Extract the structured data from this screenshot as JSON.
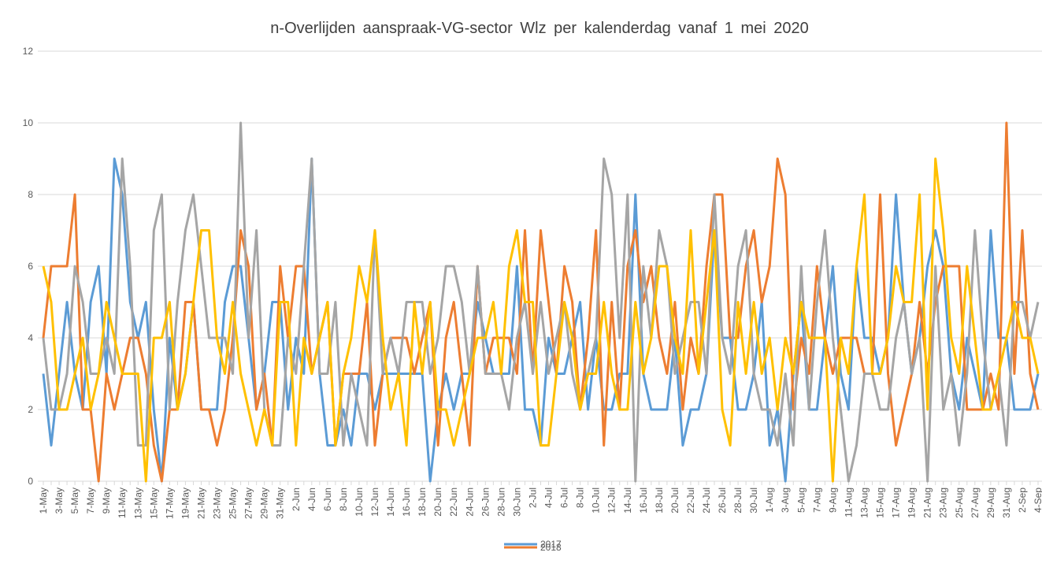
{
  "chart_data": {
    "type": "line",
    "title": "n-Overlijden  aanspraak-VG-sector  Wlz  per  kalenderdag  vanaf  1  mei  2020",
    "categories": [
      "1-May",
      null,
      "3-May",
      null,
      "5-May",
      null,
      "7-May",
      null,
      "9-May",
      null,
      "11-May",
      null,
      "13-May",
      null,
      "15-May",
      null,
      "17-May",
      null,
      "19-May",
      null,
      "21-May",
      null,
      "23-May",
      null,
      "25-May",
      null,
      "27-May",
      null,
      "29-May",
      null,
      "31-May",
      null,
      "2-Jun",
      null,
      "4-Jun",
      null,
      "6-Jun",
      null,
      "8-Jun",
      null,
      "10-Jun",
      null,
      "12-Jun",
      null,
      "14-Jun",
      null,
      "16-Jun",
      null,
      "18-Jun",
      null,
      "20-Jun",
      null,
      "22-Jun",
      null,
      "24-Jun",
      null,
      "26-Jun",
      null,
      "28-Jun",
      null,
      "30-Jun",
      null,
      "2-Jul",
      null,
      "4-Jul",
      null,
      "6-Jul",
      null,
      "8-Jul",
      null,
      "10-Jul",
      null,
      "12-Jul",
      null,
      "14-Jul",
      null,
      "16-Jul",
      null,
      "18-Jul",
      null,
      "20-Jul",
      null,
      "22-Jul",
      null,
      "24-Jul",
      null,
      "26-Jul",
      null,
      "28-Jul",
      null,
      "30-Jul",
      null,
      "1-Aug",
      null,
      "3-Aug",
      null,
      "5-Aug",
      null,
      "7-Aug",
      null,
      "9-Aug",
      null,
      "11-Aug",
      null,
      "13-Aug",
      null,
      "15-Aug",
      null,
      "17-Aug",
      null,
      "19-Aug",
      null,
      "21-Aug",
      null,
      "23-Aug",
      null,
      "25-Aug",
      null,
      "27-Aug",
      null,
      "29-Aug",
      null,
      "31-Aug",
      null,
      "2-Sep",
      null,
      "4-Sep"
    ],
    "series": [
      {
        "name": "2017",
        "color": "#5b9bd5",
        "values": [
          3,
          1,
          3,
          5,
          3,
          2,
          5,
          6,
          3,
          9,
          8,
          5,
          4,
          5,
          2,
          0,
          4,
          2,
          3,
          5,
          2,
          2,
          2,
          5,
          6,
          6,
          4,
          2,
          3,
          5,
          5,
          2,
          4,
          3,
          9,
          3,
          1,
          1,
          2,
          1,
          3,
          3,
          2,
          3,
          3,
          3,
          3,
          3,
          3,
          0,
          2,
          3,
          2,
          3,
          3,
          5,
          4,
          3,
          3,
          3,
          6,
          2,
          2,
          1,
          4,
          3,
          3,
          4,
          5,
          2,
          4,
          2,
          2,
          3,
          3,
          8,
          3,
          2,
          2,
          2,
          4,
          1,
          2,
          2,
          3,
          7,
          4,
          4,
          2,
          2,
          3,
          5,
          1,
          2,
          0,
          3,
          5,
          2,
          2,
          4,
          6,
          3,
          2,
          6,
          4,
          4,
          3,
          4,
          8,
          5,
          3,
          4,
          6,
          7,
          6,
          3,
          2,
          4,
          3,
          2,
          7,
          4,
          4,
          2,
          2,
          2,
          3
        ]
      },
      {
        "name": "2018",
        "color": "#ed7d31",
        "values": [
          4,
          6,
          6,
          6,
          8,
          2,
          2,
          0,
          3,
          2,
          3,
          4,
          4,
          3,
          1,
          0,
          2,
          2,
          5,
          5,
          2,
          2,
          1,
          2,
          4,
          7,
          6,
          2,
          3,
          1,
          6,
          4,
          6,
          6,
          3,
          4,
          5,
          1,
          3,
          3,
          3,
          5,
          1,
          3,
          4,
          4,
          4,
          3,
          4,
          5,
          1,
          4,
          5,
          3,
          1,
          6,
          3,
          4,
          4,
          4,
          3,
          7,
          3,
          7,
          5,
          3,
          6,
          5,
          2,
          4,
          7,
          1,
          5,
          2,
          6,
          7,
          5,
          6,
          4,
          3,
          5,
          2,
          4,
          3,
          6,
          8,
          8,
          4,
          4,
          6,
          7,
          5,
          6,
          9,
          8,
          2,
          4,
          3,
          6,
          4,
          3,
          4,
          4,
          4,
          3,
          3,
          8,
          3,
          1,
          2,
          3,
          5,
          3,
          5,
          6,
          6,
          6,
          2,
          2,
          2,
          3,
          2,
          10,
          3,
          7,
          3,
          2
        ]
      },
      {
        "color": "#a5a5a5",
        "values": [
          4,
          2,
          2,
          3,
          6,
          5,
          3,
          3,
          4,
          3,
          9,
          6,
          1,
          1,
          7,
          8,
          2,
          5,
          7,
          8,
          6,
          4,
          4,
          4,
          3,
          10,
          4,
          7,
          2,
          1,
          1,
          4,
          3,
          6,
          9,
          3,
          3,
          5,
          1,
          3,
          2,
          1,
          7,
          3,
          4,
          3,
          5,
          5,
          5,
          3,
          4,
          6,
          6,
          5,
          3,
          6,
          3,
          3,
          3,
          2,
          4,
          5,
          3,
          5,
          3,
          4,
          5,
          3,
          2,
          3,
          4,
          9,
          8,
          4,
          8,
          0,
          6,
          4,
          7,
          6,
          3,
          4,
          5,
          5,
          3,
          8,
          4,
          3,
          6,
          7,
          3,
          2,
          2,
          1,
          3,
          1,
          6,
          2,
          5,
          7,
          4,
          2,
          0,
          1,
          3,
          3,
          2,
          2,
          4,
          5,
          3,
          4,
          0,
          6,
          2,
          3,
          1,
          3,
          7,
          4,
          2,
          3,
          1,
          5,
          5,
          4,
          5
        ]
      },
      {
        "color": "#ffc000",
        "values": [
          6,
          5,
          2,
          2,
          3,
          4,
          2,
          3,
          5,
          4,
          3,
          3,
          3,
          0,
          4,
          4,
          5,
          2,
          3,
          5,
          7,
          7,
          4,
          3,
          5,
          3,
          2,
          1,
          2,
          1,
          5,
          5,
          1,
          4,
          3,
          4,
          5,
          1,
          3,
          4,
          6,
          5,
          7,
          4,
          2,
          3,
          1,
          5,
          3,
          5,
          2,
          2,
          1,
          2,
          3,
          4,
          4,
          5,
          3,
          6,
          7,
          5,
          5,
          1,
          1,
          3,
          5,
          4,
          2,
          3,
          3,
          5,
          3,
          2,
          2,
          5,
          3,
          4,
          6,
          6,
          4,
          3,
          7,
          3,
          5,
          7,
          2,
          1,
          5,
          3,
          5,
          3,
          4,
          2,
          4,
          3,
          5,
          4,
          4,
          4,
          0,
          4,
          3,
          6,
          8,
          3,
          3,
          4,
          6,
          5,
          5,
          8,
          2,
          9,
          7,
          4,
          3,
          6,
          4,
          2,
          2,
          3,
          4,
          5,
          4,
          4,
          3
        ]
      }
    ],
    "ylim": [
      0,
      12
    ],
    "yticks": [
      0,
      2,
      4,
      6,
      8,
      10,
      12
    ],
    "grid": true
  }
}
